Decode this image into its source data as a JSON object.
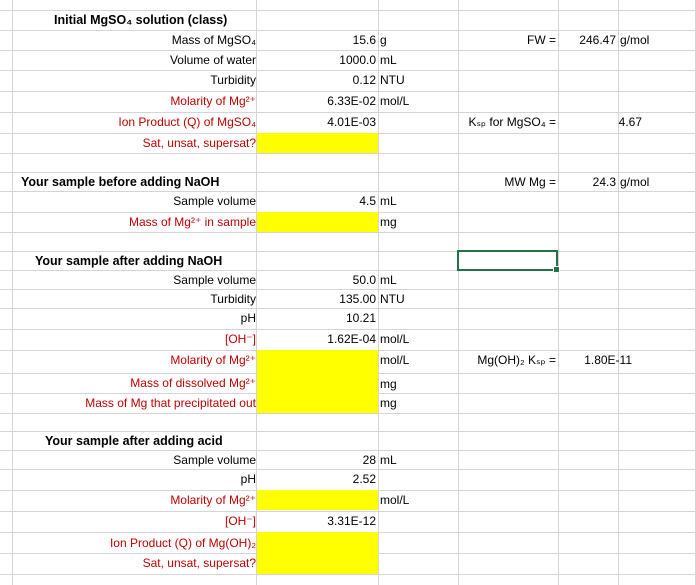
{
  "sections": {
    "initial": "Initial MgSO₄ solution (class)",
    "before": "Your sample before adding NaOH",
    "after_naoh": "Your sample after adding NaOH",
    "after_acid": "Your sample after adding acid"
  },
  "initial": {
    "mass_label": "Mass of MgSO₄",
    "mass_value": "15.6",
    "mass_unit": "g",
    "volume_label": "Volume of water",
    "volume_value": "1000.0",
    "volume_unit": "mL",
    "turbidity_label": "Turbidity",
    "turbidity_value": "0.12",
    "turbidity_unit": "NTU",
    "molarity_label": "Molarity of Mg²⁺",
    "molarity_value": "6.33E-02",
    "molarity_unit": "mol/L",
    "ion_label": "Ion Product (Q) of MgSO₄",
    "ion_value": "4.01E-03",
    "sat_label": "Sat, unsat, supersat?"
  },
  "constants": {
    "fw_label": "FW =",
    "fw_value": "246.47",
    "fw_unit": "g/mol",
    "ksp_label": "Kₛₚ for MgSO₄ =",
    "ksp_value": "4.67",
    "mw_label": "MW Mg =",
    "mw_value": "24.3",
    "mw_unit": "g/mol",
    "mgoh_label": "Mg(OH)₂ Kₛₚ =",
    "mgoh_value": "1.80E-11"
  },
  "before": {
    "volume_label": "Sample volume",
    "volume_value": "4.5",
    "volume_unit": "mL",
    "mass_label": "Mass of Mg²⁺ in sample",
    "mass_unit": "mg"
  },
  "after_naoh": {
    "volume_label": "Sample volume",
    "volume_value": "50.0",
    "volume_unit": "mL",
    "turbidity_label": "Turbidity",
    "turbidity_value": "135.00",
    "turbidity_unit": "NTU",
    "ph_label": "pH",
    "ph_value": "10.21",
    "oh_label": "[OH⁻]",
    "oh_value": "1.62E-04",
    "oh_unit": "mol/L",
    "molarity_label": "Molarity of Mg²⁺",
    "molarity_unit": "mol/L",
    "dissolved_label": "Mass of dissolved Mg²⁺",
    "dissolved_unit": "mg",
    "precip_label": "Mass of Mg that precipitated out",
    "precip_unit": "mg"
  },
  "after_acid": {
    "volume_label": "Sample volume",
    "volume_value": "28",
    "volume_unit": "mL",
    "ph_label": "pH",
    "ph_value": "2.52",
    "molarity_label": "Molarity of Mg²⁺",
    "molarity_unit": "mol/L",
    "oh_label": "[OH⁻]",
    "oh_value": "3.31E-12",
    "ion_label": "Ion Product (Q) of Mg(OH)₂",
    "sat_label": "Sat, unsat, supersat?"
  },
  "colors": {
    "input_fill": "#ffff00",
    "red_label": "#c00000",
    "selection": "#217346",
    "gridline": "#d4d4d4"
  }
}
